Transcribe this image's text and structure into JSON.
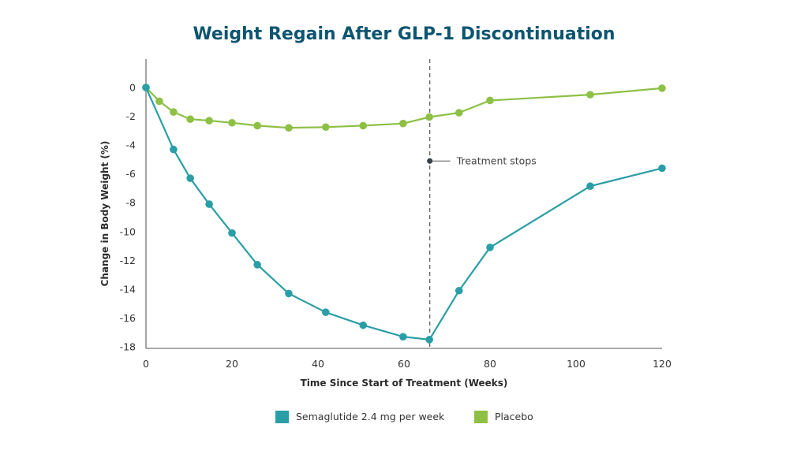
{
  "chart_data": {
    "type": "line",
    "title": "Weight Regain After GLP-1 Discontinuation",
    "xlabel": "Time Since Start of Treatment (Weeks)",
    "ylabel": "Change in Body Weight (%)",
    "xlim": [
      0,
      120
    ],
    "ylim": [
      -18,
      2
    ],
    "x_ticks": [
      0,
      20,
      40,
      60,
      80,
      100,
      120
    ],
    "y_ticks": [
      0,
      -2,
      -4,
      -6,
      -8,
      -10,
      -12,
      -14,
      -16,
      -18
    ],
    "x_tick_labels": [
      "0",
      "20",
      "40",
      "60",
      "80",
      "100",
      "120"
    ],
    "y_tick_labels": [
      "0",
      "-2",
      "-4",
      "-6",
      "-8",
      "-10",
      "-12",
      "-14",
      "-16",
      "-18"
    ],
    "grid": false,
    "legend_position": "bottom-center",
    "series": [
      {
        "name": "Semaglutide 2.4 mg per week",
        "color": "#2a9ea6",
        "x": [
          0,
          6.4,
          10.3,
          14.7,
          20,
          25.9,
          33.2,
          41.8,
          50.5,
          59.8,
          65.9,
          72.8,
          80,
          103.3,
          120
        ],
        "y": [
          0,
          -4.3,
          -6.3,
          -8.1,
          -10.1,
          -12.3,
          -14.3,
          -15.6,
          -16.5,
          -17.3,
          -17.5,
          -14.1,
          -11.1,
          -6.85,
          -5.6
        ]
      },
      {
        "name": "Placebo",
        "color": "#8dc045",
        "x": [
          0,
          3.1,
          6.4,
          10.3,
          14.7,
          20,
          25.9,
          33.2,
          41.8,
          50.5,
          59.8,
          65.9,
          72.8,
          80,
          103.3,
          120
        ],
        "y": [
          0,
          -0.95,
          -1.7,
          -2.2,
          -2.3,
          -2.45,
          -2.65,
          -2.8,
          -2.75,
          -2.65,
          -2.5,
          -2.05,
          -1.75,
          -0.9,
          -0.5,
          -0.05
        ]
      }
    ],
    "annotations": [
      {
        "label": "Treatment stops",
        "x": 66,
        "y": -5.1,
        "vertical_line_x": 66,
        "line_style": "dashed"
      }
    ]
  }
}
